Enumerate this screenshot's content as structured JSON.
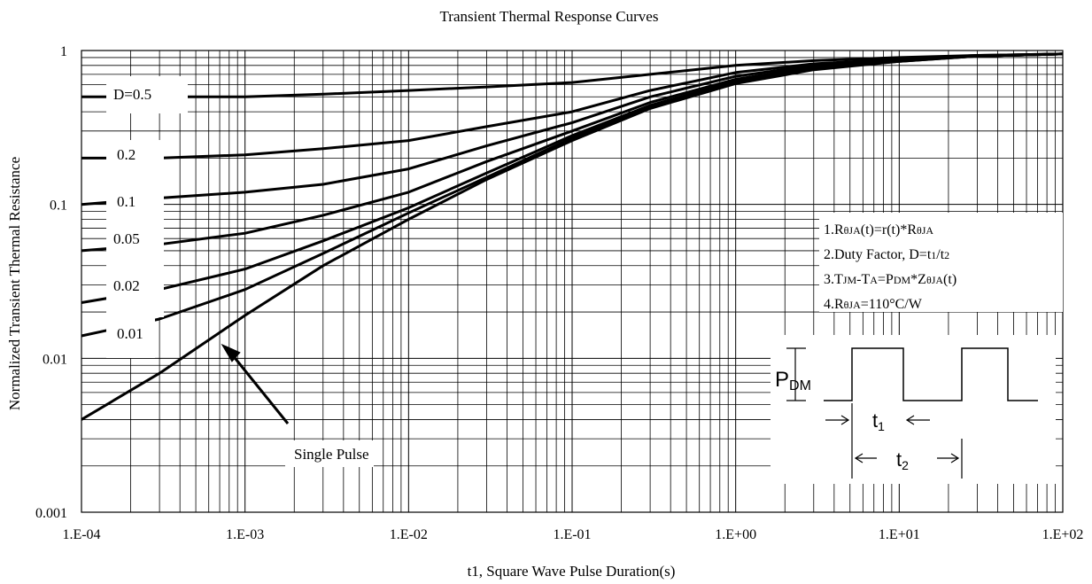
{
  "chart_data": {
    "type": "line",
    "title": "Transient Thermal Response Curves",
    "xlabel": "t1, Square Wave Pulse Duration(s)",
    "ylabel": "Normalized Transient Thermal Resistance",
    "x_scale": "log",
    "y_scale": "log",
    "xlim": [
      0.0001,
      100
    ],
    "ylim": [
      0.001,
      1
    ],
    "x_ticks": [
      "1.E-04",
      "1.E-03",
      "1.E-02",
      "1.E-01",
      "1.E+00",
      "1.E+01",
      "1.E+02"
    ],
    "y_ticks": [
      "0.001",
      "0.01",
      "0.1",
      "1"
    ],
    "grid": true,
    "series": [
      {
        "name": "D=0.5",
        "x": [
          0.0001,
          0.0003,
          0.001,
          0.003,
          0.01,
          0.03,
          0.1,
          0.3,
          1,
          3,
          10,
          30,
          100
        ],
        "y": [
          0.5,
          0.5,
          0.5,
          0.52,
          0.55,
          0.58,
          0.62,
          0.7,
          0.8,
          0.86,
          0.9,
          0.93,
          0.95
        ]
      },
      {
        "name": "0.2",
        "x": [
          0.0001,
          0.0003,
          0.001,
          0.003,
          0.01,
          0.03,
          0.1,
          0.3,
          1,
          3,
          10,
          30,
          100
        ],
        "y": [
          0.2,
          0.2,
          0.21,
          0.23,
          0.26,
          0.32,
          0.4,
          0.55,
          0.72,
          0.82,
          0.88,
          0.93,
          0.95
        ]
      },
      {
        "name": "0.1",
        "x": [
          0.0001,
          0.0003,
          0.001,
          0.003,
          0.01,
          0.03,
          0.1,
          0.3,
          1,
          3,
          10,
          30,
          100
        ],
        "y": [
          0.1,
          0.11,
          0.12,
          0.135,
          0.17,
          0.24,
          0.34,
          0.5,
          0.68,
          0.8,
          0.87,
          0.92,
          0.95
        ]
      },
      {
        "name": "0.05",
        "x": [
          0.0001,
          0.0003,
          0.001,
          0.003,
          0.01,
          0.03,
          0.1,
          0.3,
          1,
          3,
          10,
          30,
          100
        ],
        "y": [
          0.05,
          0.055,
          0.065,
          0.085,
          0.12,
          0.19,
          0.3,
          0.46,
          0.65,
          0.78,
          0.86,
          0.92,
          0.95
        ]
      },
      {
        "name": "0.02",
        "x": [
          0.0001,
          0.0003,
          0.001,
          0.003,
          0.01,
          0.03,
          0.1,
          0.3,
          1,
          3,
          10,
          30,
          100
        ],
        "y": [
          0.023,
          0.028,
          0.038,
          0.058,
          0.095,
          0.16,
          0.28,
          0.44,
          0.63,
          0.77,
          0.86,
          0.92,
          0.95
        ]
      },
      {
        "name": "0.01",
        "x": [
          0.0001,
          0.0003,
          0.001,
          0.003,
          0.01,
          0.03,
          0.1,
          0.3,
          1,
          3,
          10,
          30,
          100
        ],
        "y": [
          0.014,
          0.018,
          0.028,
          0.048,
          0.088,
          0.15,
          0.27,
          0.43,
          0.62,
          0.76,
          0.85,
          0.92,
          0.95
        ]
      },
      {
        "name": "Single Pulse",
        "x": [
          0.0001,
          0.0003,
          0.001,
          0.003,
          0.01,
          0.03,
          0.1,
          0.3,
          1,
          3,
          10,
          30,
          100
        ],
        "y": [
          0.004,
          0.008,
          0.019,
          0.04,
          0.08,
          0.145,
          0.26,
          0.42,
          0.61,
          0.75,
          0.85,
          0.92,
          0.95
        ]
      }
    ],
    "curve_labels": [
      "D=0.5",
      "0.2",
      "0.1",
      "0.05",
      "0.02",
      "0.01"
    ],
    "annotation": "Single Pulse",
    "notes": [
      {
        "main": "1.R",
        "sub1": "θJA",
        "mid": "(t)=r(t)*R",
        "sub2": "θJA",
        "end": ""
      },
      {
        "main": "2.Duty Factor, D=t",
        "sub1": "1",
        "mid": "/t",
        "sub2": "2",
        "end": ""
      },
      {
        "main": "3.T",
        "sub1": "JM",
        "mid": "-T",
        "sub2": "A",
        "end": "=P",
        "sub3": "DM",
        "tail": "*Z",
        "sub4": "θJA",
        "last": "(t)"
      },
      {
        "main": "4.R",
        "sub1": "θJA",
        "mid": "=110°C/W",
        "sub2": "",
        "end": ""
      }
    ],
    "pulse_diagram": {
      "amp_label": "P",
      "amp_sub": "DM",
      "t1_label": "t",
      "t1_sub": "1",
      "t2_label": "t",
      "t2_sub": "2"
    }
  }
}
